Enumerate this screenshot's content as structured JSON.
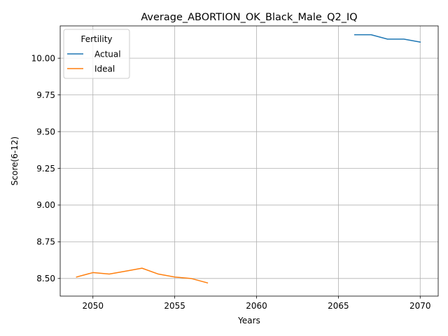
{
  "chart_data": {
    "type": "line",
    "title": "Average_ABORTION_OK_Black_Male_Q2_IQ",
    "xlabel": "Years",
    "ylabel": "Score(6-12)",
    "xlim": [
      2048.0,
      2071.1
    ],
    "ylim": [
      8.38,
      10.22
    ],
    "xticks": [
      2050,
      2055,
      2060,
      2065,
      2070
    ],
    "yticks": [
      8.5,
      8.75,
      9.0,
      9.25,
      9.5,
      9.75,
      10.0
    ],
    "grid": true,
    "legend": {
      "title": "Fertility",
      "placement": "top-left"
    },
    "series": [
      {
        "name": "Actual",
        "color": "#1f77b4",
        "x": [
          2066,
          2067,
          2068,
          2069,
          2070
        ],
        "y": [
          10.16,
          10.16,
          10.13,
          10.13,
          10.11
        ]
      },
      {
        "name": "Ideal",
        "color": "#ff7f0e",
        "x": [
          2049,
          2050,
          2051,
          2052,
          2053,
          2054,
          2055,
          2056,
          2057
        ],
        "y": [
          8.51,
          8.54,
          8.53,
          8.55,
          8.57,
          8.53,
          8.51,
          8.5,
          8.47
        ]
      }
    ]
  }
}
